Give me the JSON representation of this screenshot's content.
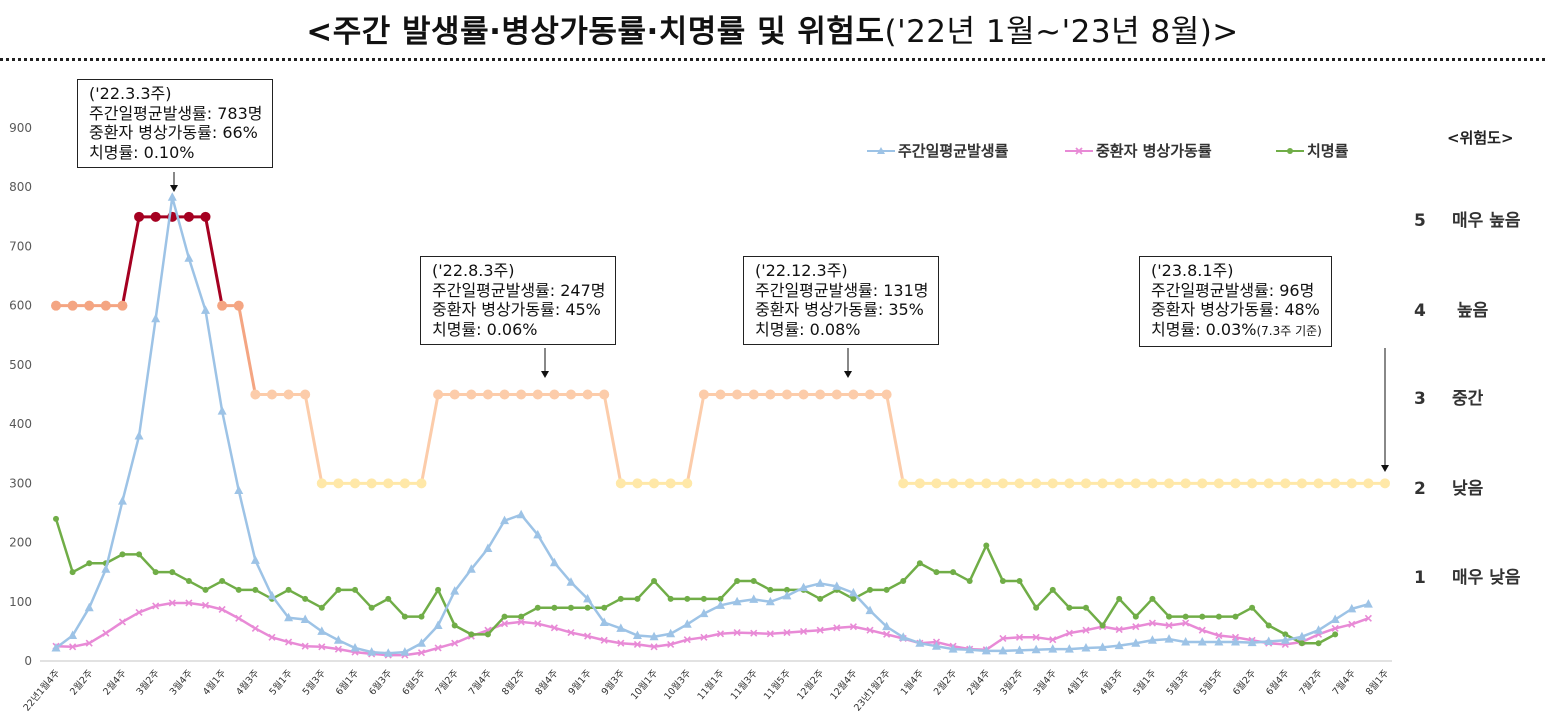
{
  "title": {
    "main": "<주간 발생률·병상가동률·치명률 및 위험도",
    "period": "('22년 1월~'23년 8월)>"
  },
  "risk_levels": {
    "heading": "<위험도>",
    "levels": [
      {
        "num": "5",
        "label": "매우 높음"
      },
      {
        "num": "4",
        "label": "높음"
      },
      {
        "num": "3",
        "label": "중간"
      },
      {
        "num": "2",
        "label": "낮음"
      },
      {
        "num": "1",
        "label": "매우 낮음"
      }
    ]
  },
  "callouts": [
    {
      "lines": [
        "('22.3.3주)",
        "주간일평균발생률: 783명",
        "중환자 병상가동률: 66%",
        "치명률: 0.10%"
      ],
      "note": ""
    },
    {
      "lines": [
        "('22.8.3주)",
        "주간일평균발생률: 247명",
        "중환자 병상가동률: 45%",
        "치명률: 0.06%"
      ],
      "note": ""
    },
    {
      "lines": [
        "('22.12.3주)",
        "주간일평균발생률: 131명",
        "중환자 병상가동률: 35%",
        "치명률: 0.08%"
      ],
      "note": ""
    },
    {
      "lines": [
        "('23.8.1주)",
        "주간일평균발생률: 96명",
        "중환자 병상가동률: 48%",
        "치명률: 0.03%"
      ],
      "note": "(7.3주 기준)"
    }
  ],
  "colors": {
    "incidence": "#9dc3e6",
    "icu": "#e88ad6",
    "fatality": "#70ad47",
    "risk5": "#a50021",
    "risk4": "#f4a582",
    "risk3": "#fcccaa",
    "risk2": "#ffe8a8",
    "axis": "#d9d9d9",
    "tick_text": "#595959"
  },
  "chart_data": {
    "type": "line",
    "xlabel": "",
    "ylabel": "",
    "ylim": [
      0,
      900
    ],
    "yticks": [
      0,
      100,
      200,
      300,
      400,
      500,
      600,
      700,
      800,
      900
    ],
    "grid": false,
    "legend_position": "top-right",
    "x_tick_labels": [
      "22년1월4주",
      "2월2주",
      "2월4주",
      "3월2주",
      "3월4주",
      "4월1주",
      "4월3주",
      "5월1주",
      "5월3주",
      "6월1주",
      "6월3주",
      "6월5주",
      "7월2주",
      "7월4주",
      "8월2주",
      "8월4주",
      "9월1주",
      "9월3주",
      "10월1주",
      "10월3주",
      "11월1주",
      "11월3주",
      "11월5주",
      "12월2주",
      "12월4주",
      "23년1월2주",
      "1월4주",
      "2월2주",
      "2월4주",
      "3월2주",
      "3월4주",
      "4월1주",
      "4월3주",
      "5월1주",
      "5월3주",
      "5월5주",
      "6월2주",
      "6월4주",
      "7월2주",
      "7월4주",
      "8월1주"
    ],
    "x_tick_positions": [
      0,
      2,
      4,
      6,
      8,
      10,
      12,
      14,
      16,
      18,
      20,
      22,
      24,
      26,
      28,
      30,
      32,
      34,
      36,
      38,
      40,
      42,
      44,
      46,
      48,
      50,
      52,
      54,
      56,
      58,
      60,
      62,
      64,
      66,
      68,
      70,
      72,
      74,
      76,
      78,
      80
    ],
    "series": [
      {
        "name": "주간일평균발생률",
        "marker": "triangle",
        "values": [
          22,
          43,
          90,
          155,
          270,
          380,
          578,
          783,
          680,
          592,
          422,
          288,
          170,
          110,
          73,
          70,
          50,
          35,
          22,
          15,
          13,
          15,
          30,
          60,
          118,
          155,
          190,
          237,
          247,
          213,
          166,
          133,
          105,
          65,
          55,
          43,
          41,
          46,
          62,
          80,
          94,
          100,
          104,
          100,
          110,
          124,
          131,
          126,
          115,
          85,
          58,
          40,
          30,
          25,
          20,
          19,
          17,
          17,
          18,
          19,
          20,
          20,
          22,
          23,
          26,
          30,
          35,
          37,
          32,
          32,
          32,
          32,
          31,
          33,
          35,
          41,
          52,
          70,
          88,
          96
        ]
      },
      {
        "name": "중환자 병상가동률",
        "marker": "x",
        "values": [
          25,
          24,
          30,
          47,
          66,
          82,
          93,
          98,
          98,
          94,
          87,
          72,
          55,
          40,
          32,
          25,
          24,
          20,
          15,
          12,
          10,
          10,
          14,
          22,
          30,
          42,
          52,
          63,
          66,
          63,
          56,
          48,
          42,
          35,
          30,
          28,
          24,
          28,
          36,
          40,
          46,
          48,
          47,
          46,
          48,
          50,
          52,
          56,
          58,
          52,
          45,
          38,
          30,
          32,
          25,
          20,
          19,
          38,
          40,
          40,
          36,
          47,
          52,
          58,
          53,
          58,
          64,
          60,
          64,
          52,
          43,
          40,
          35,
          30,
          28,
          32,
          45,
          55,
          62,
          72
        ]
      },
      {
        "name": "치명률",
        "marker": "circle",
        "values": [
          240,
          150,
          165,
          165,
          180,
          180,
          150,
          150,
          135,
          120,
          135,
          120,
          120,
          105,
          120,
          105,
          90,
          120,
          120,
          90,
          105,
          75,
          75,
          120,
          60,
          45,
          45,
          75,
          75,
          90,
          90,
          90,
          90,
          90,
          105,
          105,
          135,
          105,
          105,
          105,
          105,
          135,
          135,
          120,
          120,
          120,
          105,
          120,
          105,
          120,
          120,
          135,
          165,
          150,
          150,
          135,
          195,
          135,
          135,
          90,
          120,
          90,
          90,
          60,
          105,
          75,
          105,
          75,
          75,
          75,
          75,
          75,
          90,
          60,
          45,
          30,
          30,
          45
        ]
      },
      {
        "name": "위험도",
        "marker": "circle",
        "values": [
          600,
          600,
          600,
          600,
          600,
          750,
          750,
          750,
          750,
          750,
          600,
          600,
          450,
          450,
          450,
          450,
          300,
          300,
          300,
          300,
          300,
          300,
          300,
          450,
          450,
          450,
          450,
          450,
          450,
          450,
          450,
          450,
          450,
          450,
          300,
          300,
          300,
          300,
          300,
          450,
          450,
          450,
          450,
          450,
          450,
          450,
          450,
          450,
          450,
          450,
          450,
          300,
          300,
          300,
          300,
          300,
          300,
          300,
          300,
          300,
          300,
          300,
          300,
          300,
          300,
          300,
          300,
          300,
          300,
          300,
          300,
          300,
          300,
          300,
          300,
          300,
          300,
          300,
          300,
          300,
          300
        ]
      }
    ]
  }
}
